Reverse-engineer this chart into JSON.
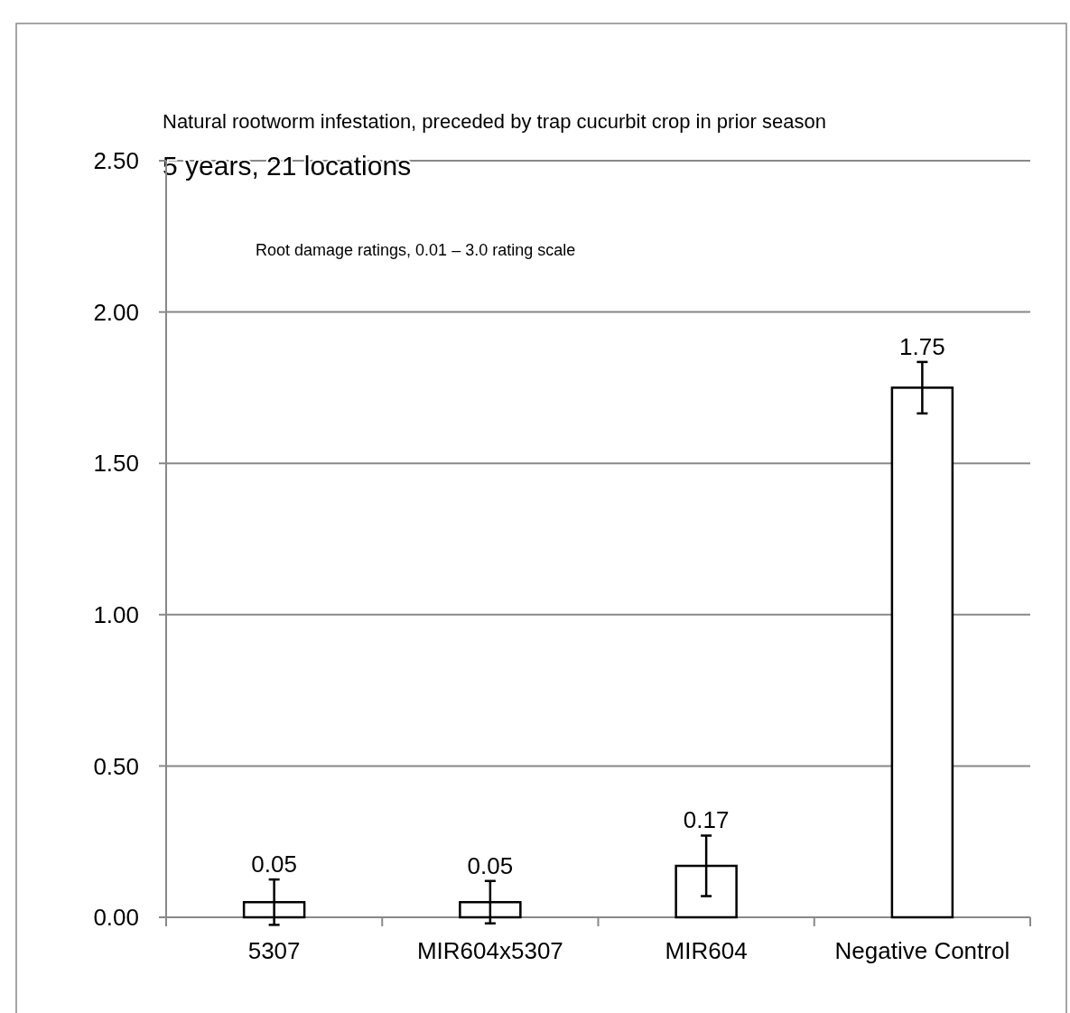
{
  "chart_data": {
    "type": "bar",
    "title": "Natural rootworm infestation, preceded by trap cucurbit crop in prior season",
    "subtitle": "5 years, 21 locations",
    "annotations": [
      "Root damage ratings, 0.01 – 3.0 rating scale"
    ],
    "categories": [
      "5307",
      "MIR604x5307",
      "MIR604",
      "Negative Control"
    ],
    "values": [
      0.05,
      0.05,
      0.17,
      1.75
    ],
    "errors": [
      0.075,
      0.07,
      0.1,
      0.085
    ],
    "color": "#ffffff",
    "data_labels": true,
    "ylim": [
      0,
      2.5
    ],
    "yticks": [
      {
        "value": 0,
        "label": "0.00"
      },
      {
        "value": 0.5,
        "label": "0.50"
      },
      {
        "value": 1,
        "label": "1.00"
      },
      {
        "value": 1.5,
        "label": "1.50"
      },
      {
        "value": 2,
        "label": "2.00"
      },
      {
        "value": 2.5,
        "label": "2.50"
      }
    ],
    "grid": "y"
  }
}
